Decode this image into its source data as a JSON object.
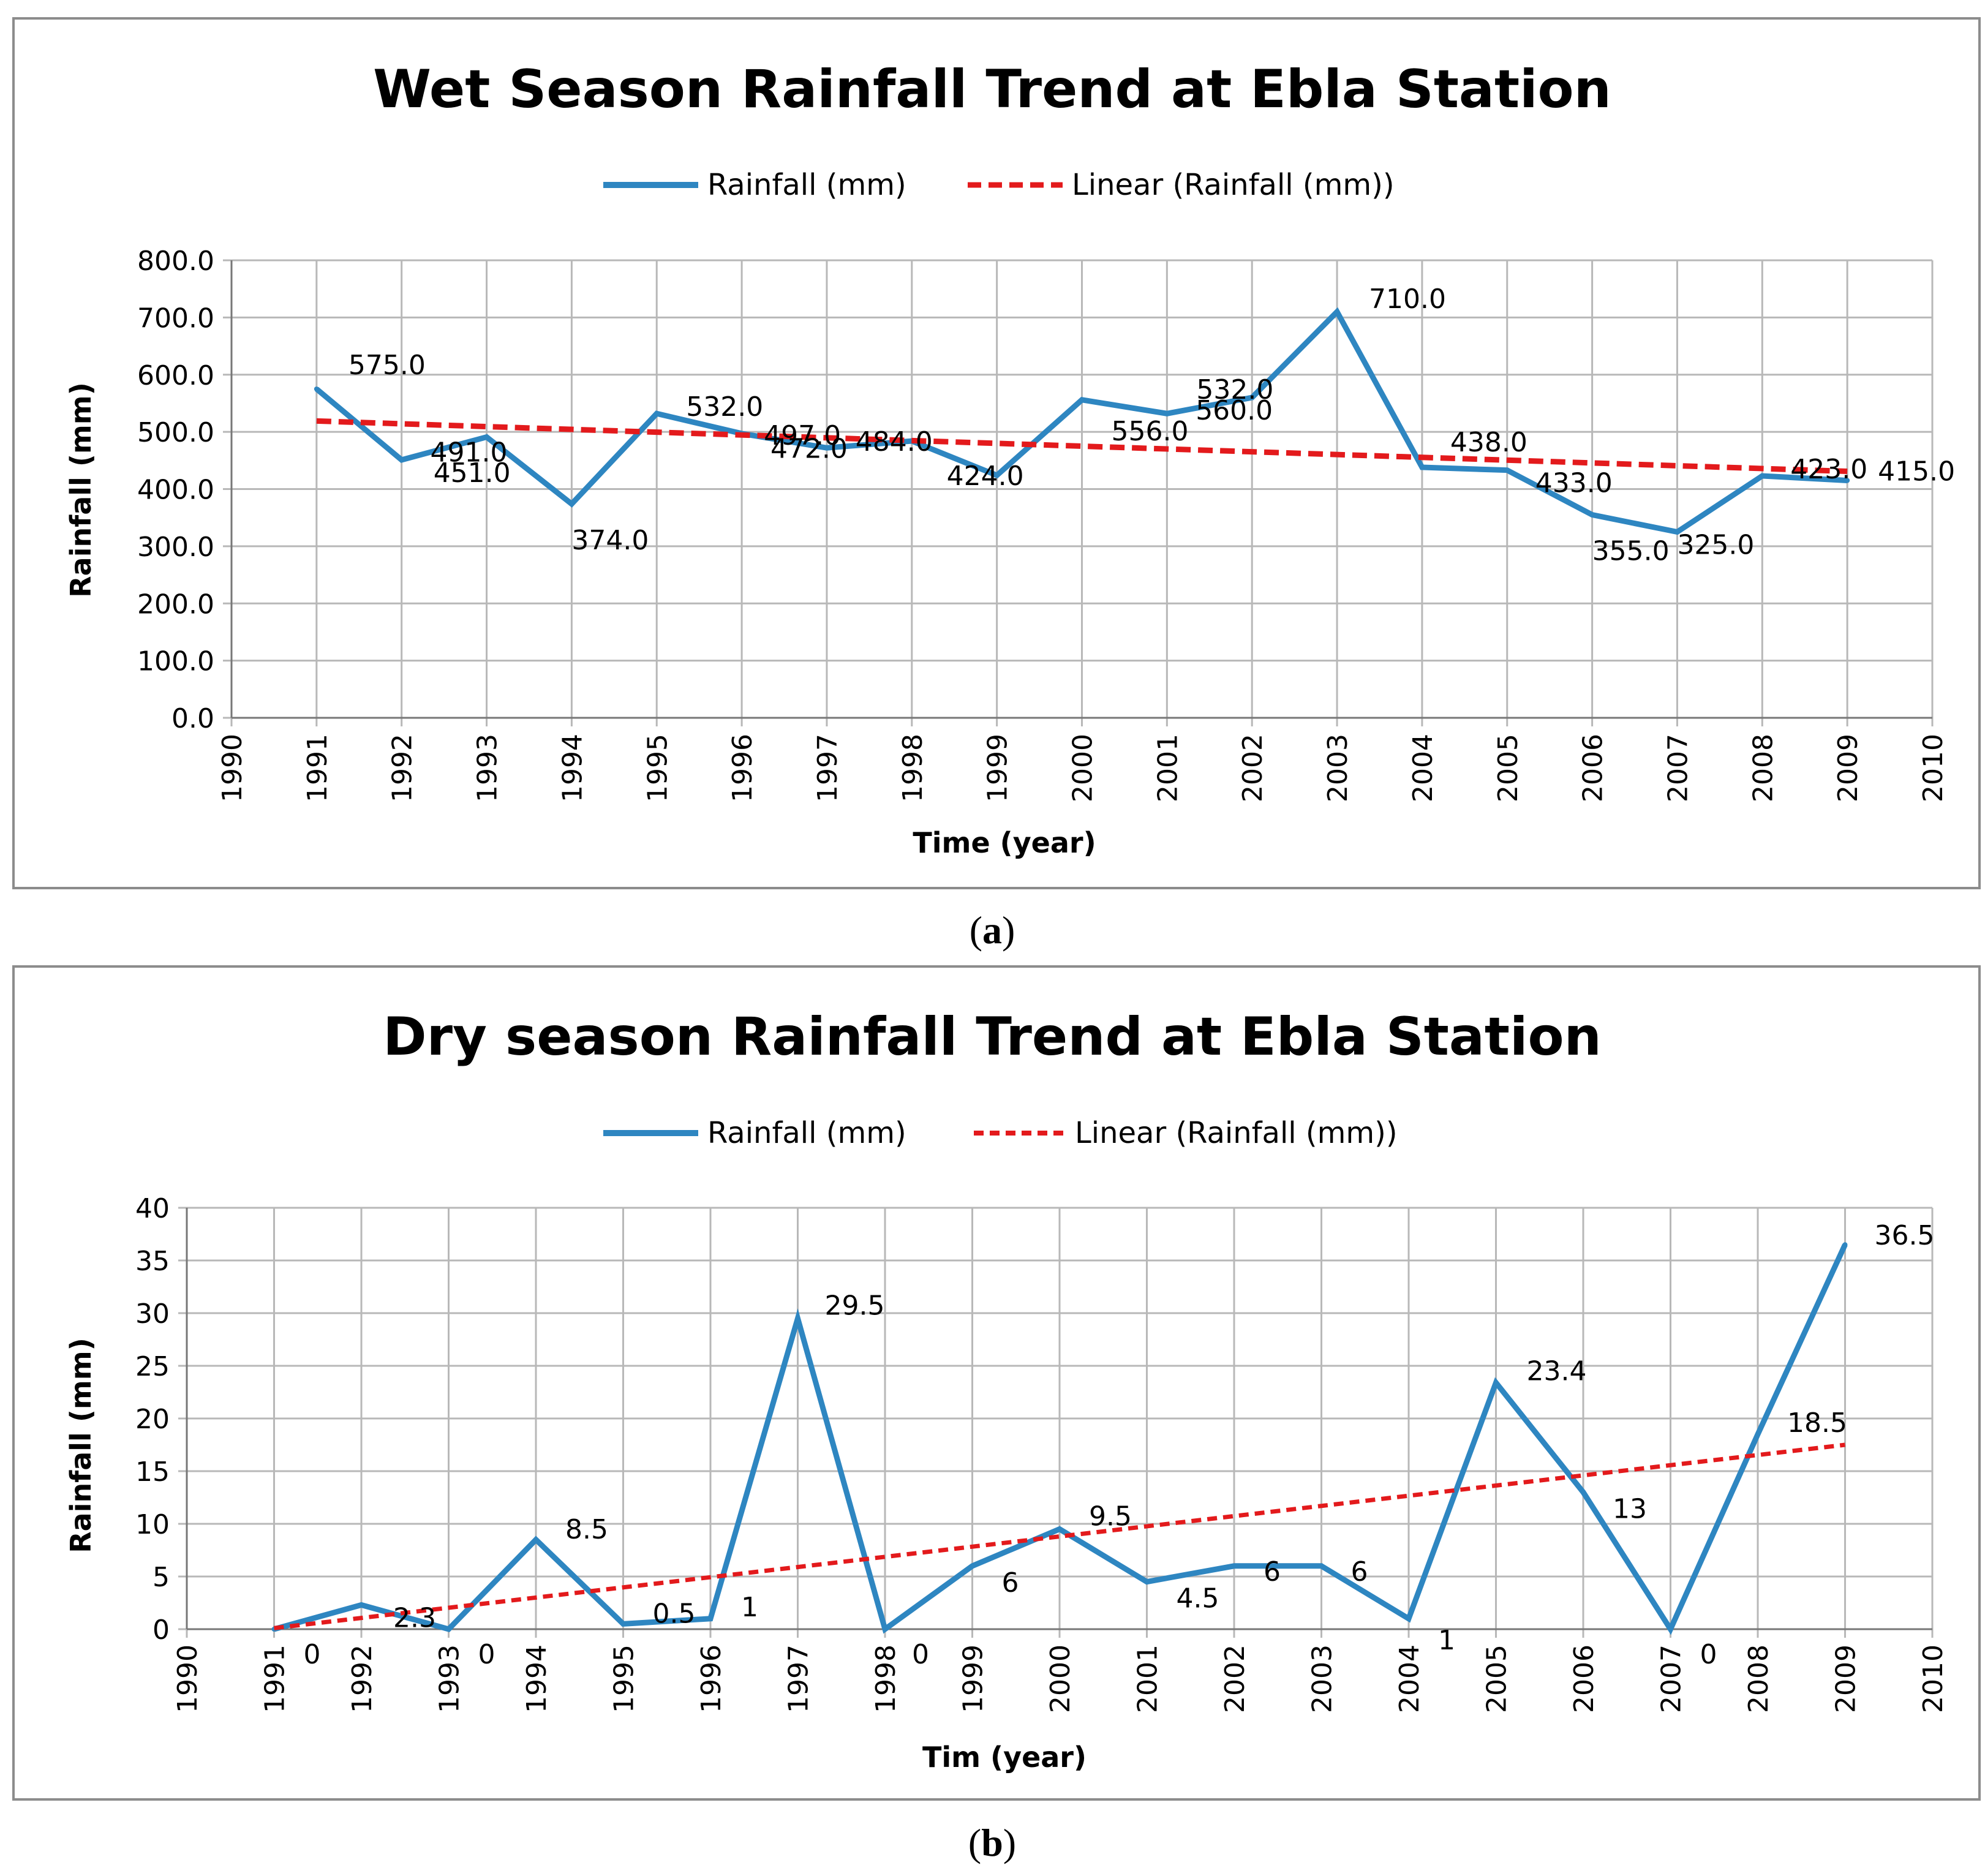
{
  "chart_data": [
    {
      "type": "line",
      "title": "Wet Season Rainfall Trend at Ebla Station",
      "xlabel": "Time (year)",
      "ylabel": "Rainfall (mm)",
      "xlim": [
        1990,
        2010
      ],
      "ylim": [
        0,
        800
      ],
      "y_ticks": [
        "0.0",
        "100.0",
        "200.0",
        "300.0",
        "400.0",
        "500.0",
        "600.0",
        "700.0",
        "800.0"
      ],
      "x_ticks": [
        "1990",
        "1991",
        "1992",
        "1993",
        "1994",
        "1995",
        "1996",
        "1997",
        "1998",
        "1999",
        "2000",
        "2001",
        "2002",
        "2003",
        "2004",
        "2005",
        "2006",
        "2007",
        "2008",
        "2009",
        "2010"
      ],
      "legend": [
        "Rainfall (mm)",
        "Linear (Rainfall (mm))"
      ],
      "grid": true,
      "x": [
        1991,
        1992,
        1993,
        1994,
        1995,
        1996,
        1997,
        1998,
        1999,
        2000,
        2001,
        2002,
        2003,
        2004,
        2005,
        2006,
        2007,
        2008,
        2009
      ],
      "values": [
        575,
        451,
        491,
        374,
        532,
        497,
        472,
        484,
        424,
        556,
        532,
        560,
        710,
        438,
        433,
        355,
        325,
        423,
        415
      ],
      "data_labels": [
        "575.0",
        "451.0",
        "491.0",
        "374.0",
        "532.0",
        "497.0",
        "472.0",
        "484.0",
        "424.0",
        "556.0",
        "532.0",
        "560.0",
        "710.0",
        "438.0",
        "433.0",
        "355.0",
        "325.0",
        "423.0",
        "415.0"
      ],
      "trend": [
        519,
        431
      ],
      "caption_letter": "a"
    },
    {
      "type": "line",
      "title": "Dry season Rainfall Trend at Ebla Station",
      "xlabel": "Tim (year)",
      "ylabel": "Rainfall (mm)",
      "xlim": [
        1990,
        2010
      ],
      "ylim": [
        0,
        40
      ],
      "y_ticks": [
        "0",
        "5",
        "10",
        "15",
        "20",
        "25",
        "30",
        "35",
        "40"
      ],
      "x_ticks": [
        "1990",
        "1991",
        "1992",
        "1993",
        "1994",
        "1995",
        "1996",
        "1997",
        "1998",
        "1999",
        "2000",
        "2001",
        "2002",
        "2003",
        "2004",
        "2005",
        "2006",
        "2007",
        "2008",
        "2009",
        "2010"
      ],
      "legend": [
        "Rainfall (mm)",
        "Linear (Rainfall (mm))"
      ],
      "grid": true,
      "x": [
        1991,
        1992,
        1993,
        1994,
        1995,
        1996,
        1997,
        1998,
        1999,
        2000,
        2001,
        2002,
        2003,
        2004,
        2005,
        2006,
        2007,
        2008,
        2009
      ],
      "values": [
        0,
        2.3,
        0,
        8.5,
        0.5,
        1,
        29.5,
        0,
        6,
        9.5,
        4.5,
        6,
        6,
        1,
        23.4,
        13,
        0,
        18.5,
        36.5
      ],
      "data_labels": [
        "0",
        "2.3",
        "0",
        "8.5",
        "0.5",
        "1",
        "29.5",
        "0",
        "6",
        "9.5",
        "4.5",
        "6",
        "6",
        "1",
        "23.4",
        "13",
        "0",
        "18.5",
        "36.5"
      ],
      "trend": [
        0.1,
        17.5
      ],
      "caption_letter": "b"
    }
  ],
  "colors": {
    "series": "#2e86c1",
    "trend": "#e31a1c",
    "grid": "#b8b8b8",
    "frame": "#8c8c8c"
  }
}
